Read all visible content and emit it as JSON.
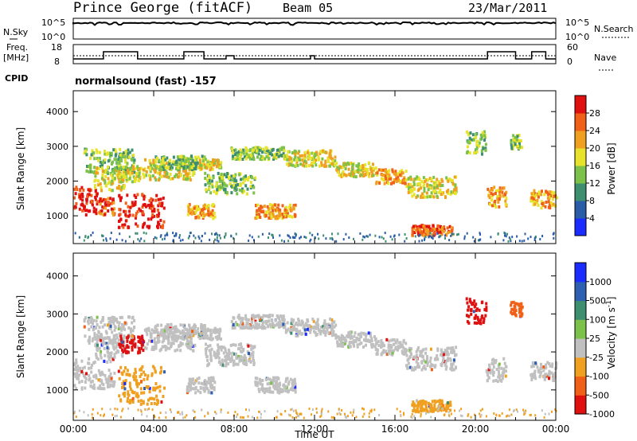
{
  "header": {
    "station": "Prince George (fitACF)",
    "beam": "Beam 05",
    "date": "23/Mar/2011"
  },
  "top_panels": {
    "nsky_label": "N.Sky",
    "nsky_hi": "10^5",
    "nsky_lo": "10^0",
    "nsearch_label": "N.Search",
    "nsearch_hi": "10^5",
    "nsearch_lo": "10^0",
    "freq_label_1": "Freq.",
    "freq_label_2": "[MHz]",
    "freq_hi": "18",
    "freq_lo": "8",
    "nave_label": "Nave",
    "nave_hi": "60",
    "nave_lo": "0",
    "cpid_label": "CPID",
    "cpid_text": "normalsound (fast) -157"
  },
  "chart_data": [
    {
      "type": "heatmap",
      "name": "power",
      "ylabel": "Slant Range [km]",
      "yticks": [
        "1000",
        "2000",
        "3000",
        "4000"
      ],
      "ylim": [
        200,
        4600
      ],
      "colorbar_label": "Power [dB]",
      "colorbar_ticks": [
        "4",
        "8",
        "12",
        "16",
        "20",
        "24",
        "28"
      ],
      "colors": [
        "#1a2cff",
        "#2a5ca8",
        "#3d8f6f",
        "#7cc24a",
        "#e6e32a",
        "#f0a020",
        "#f06018",
        "#e01010"
      ],
      "xlim_hours": [
        0,
        24
      ]
    },
    {
      "type": "heatmap",
      "name": "velocity",
      "ylabel": "Slant Range [km]",
      "yticks": [
        "1000",
        "2000",
        "3000",
        "4000"
      ],
      "ylim": [
        200,
        4600
      ],
      "colorbar_label": "Velocity [m s",
      "colorbar_unit_exp": "-1",
      "colorbar_unit_close": "]",
      "colorbar_ticks": [
        "1000",
        "500",
        "100",
        "25",
        "-25",
        "-100",
        "-500",
        "-1000"
      ],
      "colors": [
        "#1a2cff",
        "#2e5fb0",
        "#3d8f6f",
        "#7cc24a",
        "#c0c0c0",
        "#f0a020",
        "#f06018",
        "#e01010"
      ],
      "xlim_hours": [
        0,
        24
      ]
    }
  ],
  "x_axis": {
    "ticks": [
      "00:00",
      "04:00",
      "08:00",
      "12:00",
      "16:00",
      "20:00",
      "00:00"
    ],
    "label": "Time UT"
  }
}
